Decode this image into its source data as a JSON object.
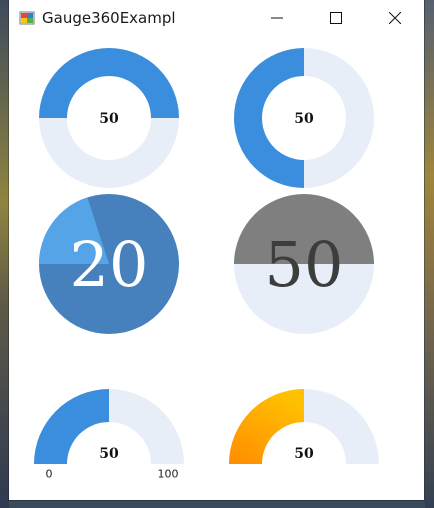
{
  "window": {
    "title": "Gauge360Exampl"
  },
  "colors": {
    "blue": "#3b8ddd",
    "light": "#e8eef8",
    "pie_dark": "#4781bd",
    "pie_light": "#55a4e8",
    "gray": "#7f7f7f",
    "orange_start": "#ff8c00",
    "orange_end": "#ffc000"
  },
  "gauges": {
    "g1": {
      "value": 50,
      "max": 100,
      "label": "50"
    },
    "g2": {
      "value": 50,
      "max": 100,
      "label": "50"
    },
    "g3": {
      "value": 20,
      "max": 100,
      "label": "20"
    },
    "g4": {
      "value": 50,
      "max": 100,
      "label": "50"
    },
    "g5": {
      "value": 50,
      "max": 100,
      "label": "50",
      "min_label": "0",
      "max_label": "100"
    },
    "g6": {
      "value": 50,
      "max": 100,
      "label": "50"
    }
  }
}
